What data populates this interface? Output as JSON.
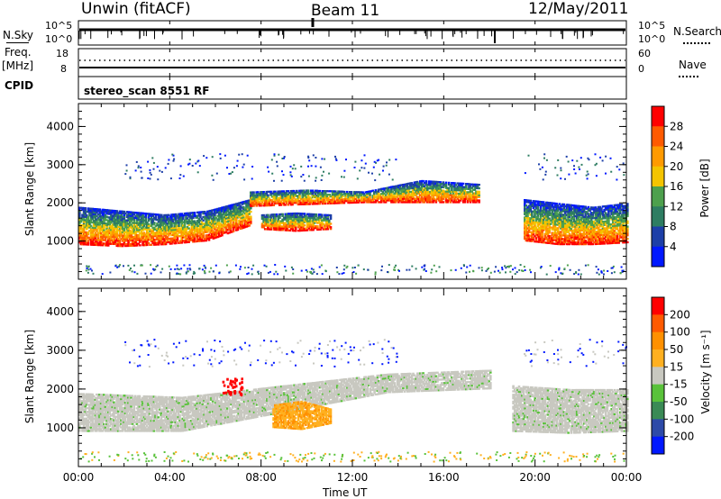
{
  "header": {
    "station": "Unwin (fitACF)",
    "beam": "Beam 11",
    "date": "12/May/2011"
  },
  "aux_panels": {
    "nsky_label": "N.Sky",
    "nsky_ticks": [
      "10^5",
      "10^0"
    ],
    "nsearch_label": "N.Search",
    "nsearch_ticks": [
      "10^5",
      "10^0"
    ],
    "freq_label": "Freq.",
    "freq_unit": "[MHz]",
    "freq_ticks": [
      "18",
      "8"
    ],
    "nave_label": "Nave",
    "nave_ticks": [
      "60",
      "0"
    ],
    "cpid_label": "CPID",
    "cpid_value": "stereo_scan 8551 RF"
  },
  "colors": {
    "power_scale": [
      "#0018ff",
      "#1d3fa8",
      "#2e7d62",
      "#4da04d",
      "#f4c400",
      "#ff9a00",
      "#ff5a00",
      "#ff0000"
    ],
    "velocity_scale": [
      "#0018ff",
      "#2d4aa8",
      "#3a8a55",
      "#59c23a",
      "#c8c8c0",
      "#ffb020",
      "#ff9000",
      "#ff5a00",
      "#ff0000"
    ]
  },
  "chart_data": [
    {
      "type": "heatmap",
      "name": "power",
      "ylabel": "Slant Range [km]",
      "ylim": [
        0,
        4600
      ],
      "y_ticks": [
        "1000",
        "2000",
        "3000",
        "4000"
      ],
      "x_ticks": [
        "00:00",
        "04:00",
        "08:00",
        "12:00",
        "16:00",
        "20:00",
        "00:00"
      ],
      "xlim": [
        "00:00",
        "24:00"
      ],
      "colorbar": {
        "label": "Power [dB]",
        "ticks": [
          "28",
          "24",
          "20",
          "16",
          "12",
          "8",
          "4"
        ]
      },
      "echo_bands": [
        {
          "start_h": 0.0,
          "end_h": 7.5,
          "lower_km": [
            900,
            850,
            900,
            1000,
            1400
          ],
          "upper_km": [
            1900,
            1800,
            1700,
            1800,
            2100
          ]
        },
        {
          "start_h": 7.5,
          "end_h": 17.5,
          "lower_km": [
            1900,
            1950,
            2000,
            2000,
            2000
          ],
          "upper_km": [
            2300,
            2350,
            2300,
            2600,
            2500
          ]
        },
        {
          "start_h": 8.0,
          "end_h": 11.0,
          "lower_km": [
            1300,
            1250,
            1300
          ],
          "upper_km": [
            1700,
            1750,
            1700
          ]
        },
        {
          "start_h": 19.5,
          "end_h": 24.0,
          "lower_km": [
            1000,
            900,
            900,
            950
          ],
          "upper_km": [
            2100,
            2000,
            1900,
            2000
          ]
        }
      ]
    },
    {
      "type": "heatmap",
      "name": "velocity",
      "ylabel": "Slant Range [km]",
      "ylim": [
        0,
        4600
      ],
      "y_ticks": [
        "1000",
        "2000",
        "3000",
        "4000"
      ],
      "x_ticks": [
        "00:00",
        "04:00",
        "08:00",
        "12:00",
        "16:00",
        "20:00",
        "00:00"
      ],
      "xlabel": "Time UT",
      "colorbar": {
        "label": "Velocity [m s⁻¹]",
        "ticks": [
          "200",
          "100",
          "50",
          "15",
          "-15",
          "-50",
          "-100",
          "-200"
        ]
      },
      "echo_bands": [
        {
          "start_h": 0.0,
          "end_h": 18.0,
          "lower_km": [
            900,
            900,
            1400,
            1900,
            2000
          ],
          "upper_km": [
            1900,
            1800,
            2100,
            2400,
            2500
          ]
        },
        {
          "start_h": 8.5,
          "end_h": 11.0,
          "lower_km": [
            1000,
            950,
            1100
          ],
          "upper_km": [
            1600,
            1700,
            1500
          ]
        },
        {
          "start_h": 19.0,
          "end_h": 24.0,
          "lower_km": [
            900,
            850,
            900
          ],
          "upper_km": [
            2100,
            2000,
            2000
          ]
        }
      ]
    }
  ]
}
